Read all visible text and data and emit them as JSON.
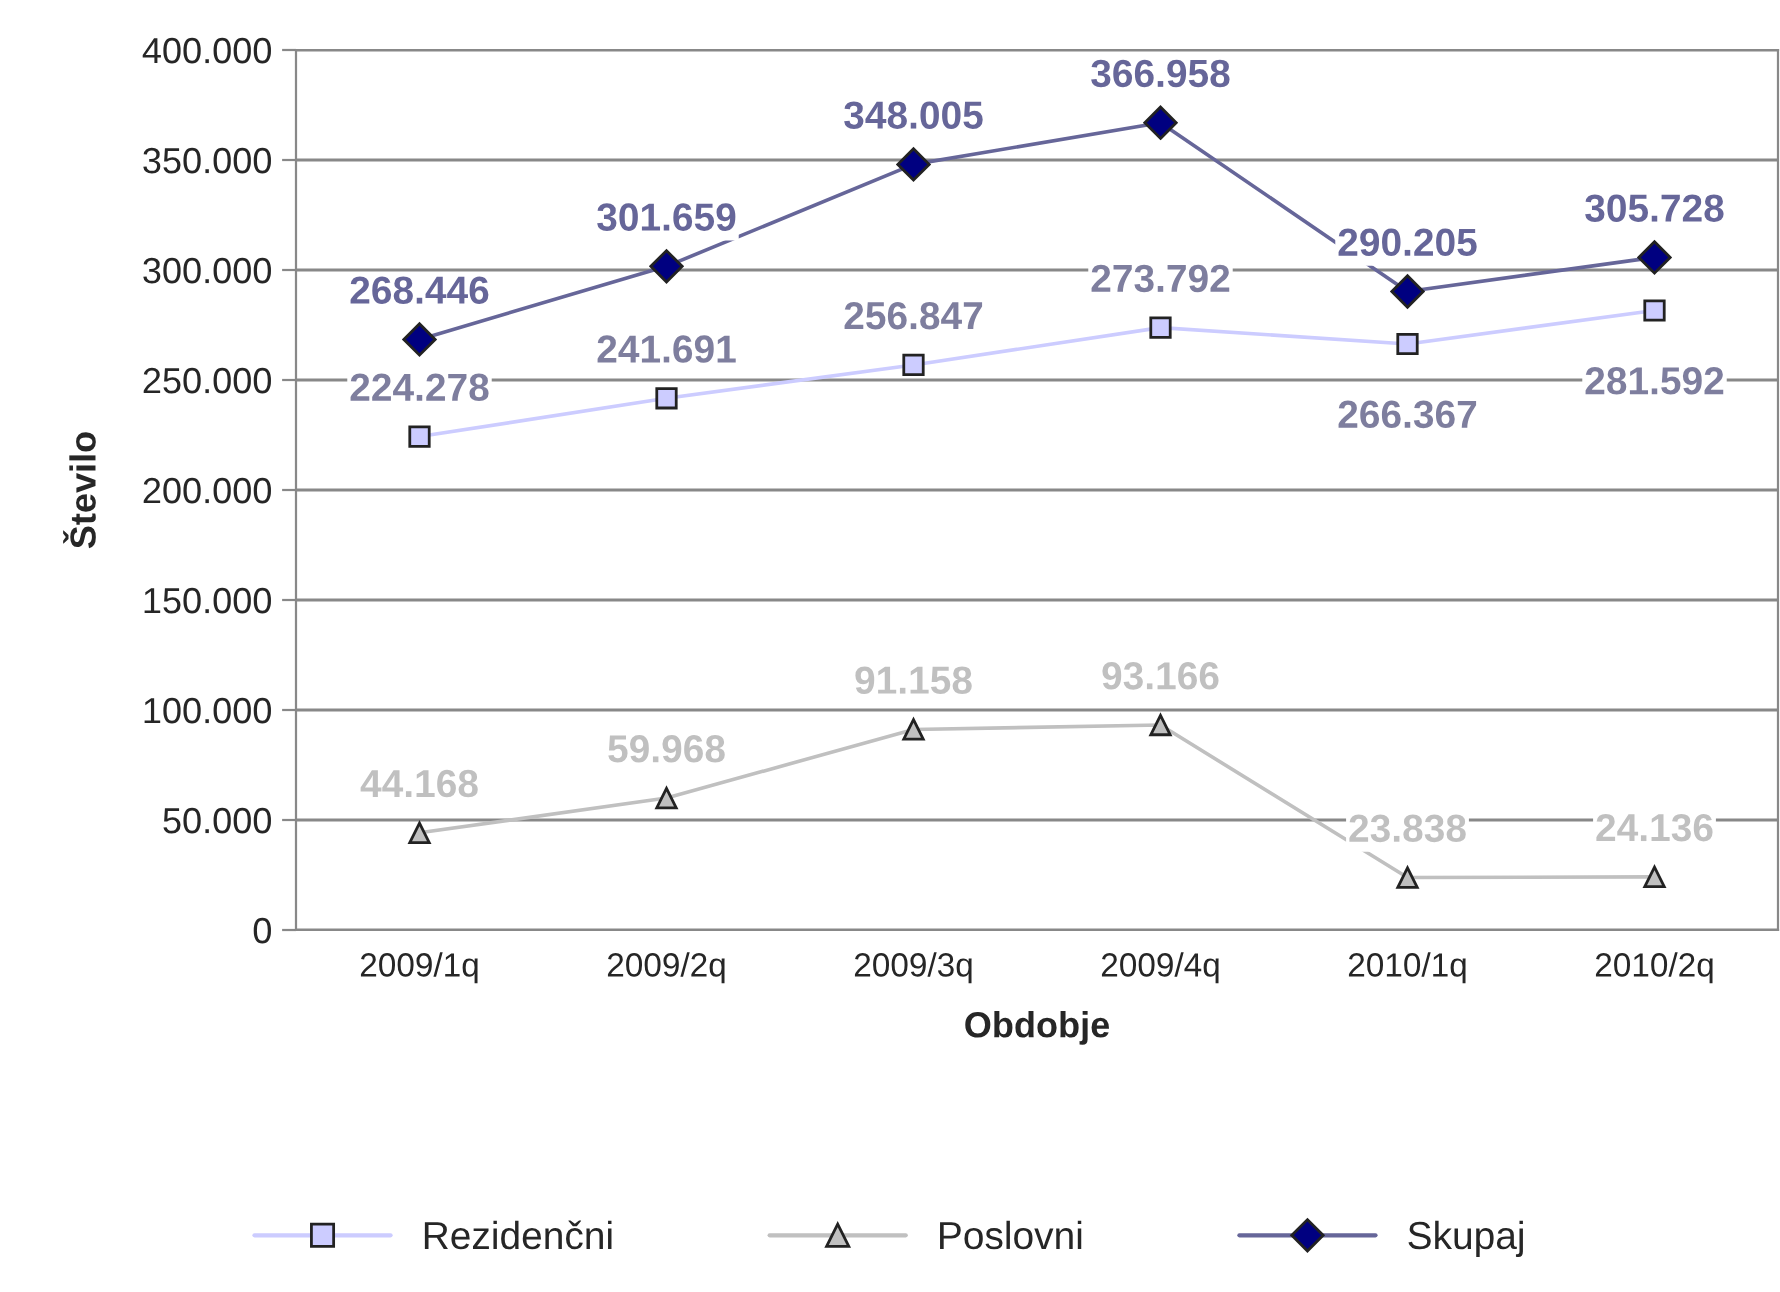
{
  "chart_data": {
    "type": "line",
    "xlabel": "Obdobje",
    "ylabel": "Število",
    "categories": [
      "2009/1q",
      "2009/2q",
      "2009/3q",
      "2009/4q",
      "2010/1q",
      "2010/2q"
    ],
    "series": [
      {
        "name": "Rezidenčni",
        "color": "#ccccff",
        "marker": "square",
        "values": [
          224278,
          241691,
          256847,
          273792,
          266367,
          281592
        ],
        "value_labels": [
          "224.278",
          "241.691",
          "256.847",
          "273.792",
          "266.367",
          "281.592"
        ]
      },
      {
        "name": "Poslovni",
        "color": "#c0c0c0",
        "marker": "triangle",
        "values": [
          44168,
          59968,
          91158,
          93166,
          23838,
          24136
        ],
        "value_labels": [
          "44.168",
          "59.968",
          "91.158",
          "93.166",
          "23.838",
          "24.136"
        ]
      },
      {
        "name": "Skupaj",
        "color": "#666699",
        "marker": "diamond",
        "values": [
          268446,
          301659,
          348005,
          366958,
          290205,
          305728
        ],
        "value_labels": [
          "268.446",
          "301.659",
          "348.005",
          "366.958",
          "290.205",
          "305.728"
        ]
      }
    ],
    "ylim": [
      0,
      400000
    ],
    "yticks": [
      0,
      {
        "value": 50000,
        "label": "50.000"
      },
      {
        "value": 100000,
        "label": "100.000"
      },
      {
        "value": 150000,
        "label": "150.000"
      },
      {
        "value": 200000,
        "label": "200.000"
      },
      {
        "value": 250000,
        "label": "250.000"
      },
      {
        "value": 300000,
        "label": "300.000"
      },
      {
        "value": 350000,
        "label": "350.000"
      },
      {
        "value": 400000,
        "label": "400.000"
      }
    ],
    "grid": "y",
    "legend": "bottom"
  }
}
